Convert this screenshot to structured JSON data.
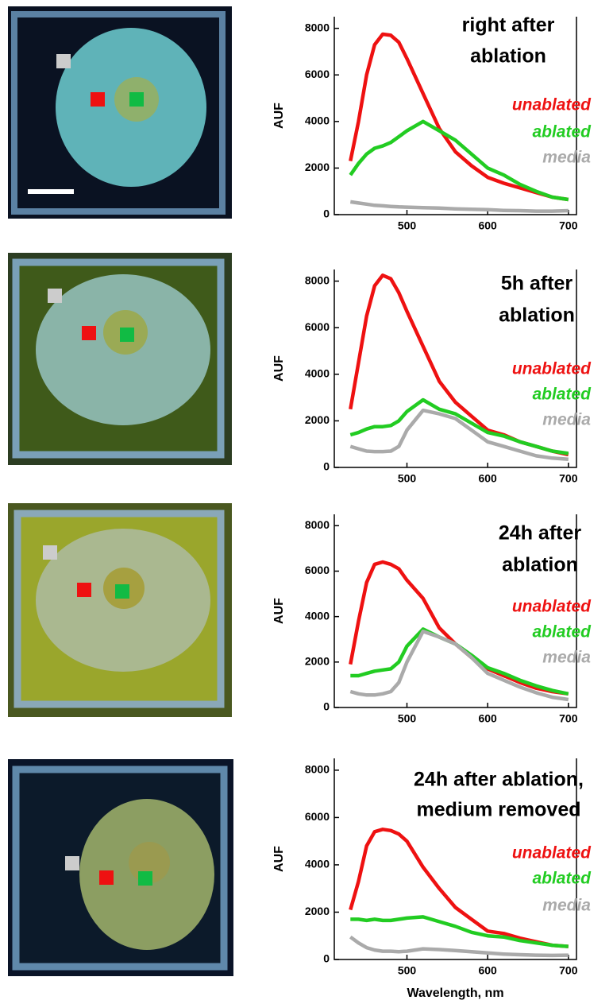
{
  "chart_data": [
    {
      "type": "line",
      "title": [
        "right after",
        "ablation"
      ],
      "ylabel": "AUF",
      "x": [
        430,
        440,
        450,
        460,
        470,
        480,
        490,
        500,
        520,
        540,
        560,
        580,
        600,
        620,
        640,
        660,
        680,
        700
      ],
      "xlim": [
        410,
        710
      ],
      "xticks": [
        500,
        600,
        700
      ],
      "ylim": [
        0,
        8500
      ],
      "yticks": [
        0,
        2000,
        4000,
        6000,
        8000
      ],
      "series": [
        {
          "name": "unablated",
          "color": "#ee1111",
          "values": [
            2300,
            4000,
            6000,
            7300,
            7750,
            7700,
            7400,
            6700,
            5200,
            3700,
            2700,
            2100,
            1600,
            1350,
            1150,
            950,
            750,
            650
          ]
        },
        {
          "name": "ablated",
          "color": "#22cc22",
          "values": [
            1700,
            2200,
            2600,
            2850,
            2950,
            3100,
            3350,
            3600,
            4000,
            3600,
            3200,
            2600,
            2000,
            1700,
            1300,
            1000,
            750,
            650
          ]
        },
        {
          "name": "media",
          "color": "#aaaaaa",
          "values": [
            550,
            500,
            450,
            400,
            380,
            350,
            330,
            320,
            300,
            280,
            250,
            230,
            210,
            180,
            170,
            150,
            150,
            170
          ]
        }
      ]
    },
    {
      "type": "line",
      "title": [
        "5h after",
        "ablation"
      ],
      "ylabel": "AUF",
      "x": [
        430,
        440,
        450,
        460,
        470,
        480,
        490,
        500,
        520,
        540,
        560,
        580,
        600,
        620,
        640,
        660,
        680,
        700
      ],
      "xlim": [
        410,
        710
      ],
      "xticks": [
        500,
        600,
        700
      ],
      "ylim": [
        0,
        8500
      ],
      "yticks": [
        0,
        2000,
        4000,
        6000,
        8000
      ],
      "series": [
        {
          "name": "unablated",
          "color": "#ee1111",
          "values": [
            2500,
            4500,
            6500,
            7800,
            8250,
            8100,
            7500,
            6700,
            5200,
            3700,
            2800,
            2200,
            1600,
            1400,
            1100,
            900,
            700,
            550
          ]
        },
        {
          "name": "ablated",
          "color": "#22cc22",
          "values": [
            1400,
            1500,
            1650,
            1750,
            1750,
            1800,
            2000,
            2400,
            2900,
            2500,
            2300,
            1900,
            1500,
            1350,
            1100,
            900,
            700,
            600
          ]
        },
        {
          "name": "media",
          "color": "#aaaaaa",
          "values": [
            900,
            800,
            700,
            680,
            680,
            700,
            900,
            1600,
            2450,
            2300,
            2100,
            1600,
            1100,
            900,
            700,
            500,
            400,
            350
          ]
        }
      ]
    },
    {
      "type": "line",
      "title": [
        "24h after",
        "ablation"
      ],
      "ylabel": "AUF",
      "x": [
        430,
        440,
        450,
        460,
        470,
        480,
        490,
        500,
        520,
        540,
        560,
        580,
        600,
        620,
        640,
        660,
        680,
        700
      ],
      "xlim": [
        410,
        710
      ],
      "xticks": [
        500,
        600,
        700
      ],
      "ylim": [
        0,
        8500
      ],
      "yticks": [
        0,
        2000,
        4000,
        6000,
        8000
      ],
      "series": [
        {
          "name": "unablated",
          "color": "#ee1111",
          "values": [
            1900,
            3800,
            5500,
            6300,
            6400,
            6300,
            6100,
            5600,
            4800,
            3500,
            2800,
            2200,
            1700,
            1400,
            1100,
            850,
            700,
            600
          ]
        },
        {
          "name": "ablated",
          "color": "#22cc22",
          "values": [
            1400,
            1400,
            1500,
            1600,
            1650,
            1700,
            2000,
            2700,
            3450,
            3100,
            2800,
            2300,
            1750,
            1500,
            1200,
            950,
            750,
            600
          ]
        },
        {
          "name": "media",
          "color": "#aaaaaa",
          "values": [
            700,
            600,
            550,
            550,
            600,
            700,
            1100,
            2000,
            3350,
            3100,
            2800,
            2200,
            1500,
            1200,
            900,
            650,
            450,
            350
          ]
        }
      ]
    },
    {
      "type": "line",
      "title": [
        "24h after ablation,",
        "medium removed"
      ],
      "ylabel": "AUF",
      "xlabel": "Wavelength, nm",
      "x": [
        430,
        440,
        450,
        460,
        470,
        480,
        490,
        500,
        520,
        540,
        560,
        580,
        600,
        620,
        640,
        660,
        680,
        700
      ],
      "xlim": [
        410,
        710
      ],
      "xticks": [
        500,
        600,
        700
      ],
      "ylim": [
        0,
        8500
      ],
      "yticks": [
        0,
        2000,
        4000,
        6000,
        8000
      ],
      "series": [
        {
          "name": "unablated",
          "color": "#ee1111",
          "values": [
            2100,
            3300,
            4800,
            5400,
            5500,
            5450,
            5300,
            5000,
            3900,
            3000,
            2200,
            1700,
            1200,
            1100,
            900,
            750,
            600,
            550
          ]
        },
        {
          "name": "ablated",
          "color": "#22cc22",
          "values": [
            1700,
            1700,
            1650,
            1700,
            1650,
            1650,
            1700,
            1750,
            1800,
            1600,
            1400,
            1150,
            1000,
            950,
            800,
            700,
            600,
            550
          ]
        },
        {
          "name": "media",
          "color": "#aaaaaa",
          "values": [
            950,
            700,
            500,
            400,
            350,
            350,
            330,
            350,
            450,
            420,
            380,
            330,
            280,
            230,
            200,
            180,
            170,
            180
          ]
        }
      ]
    }
  ]
}
